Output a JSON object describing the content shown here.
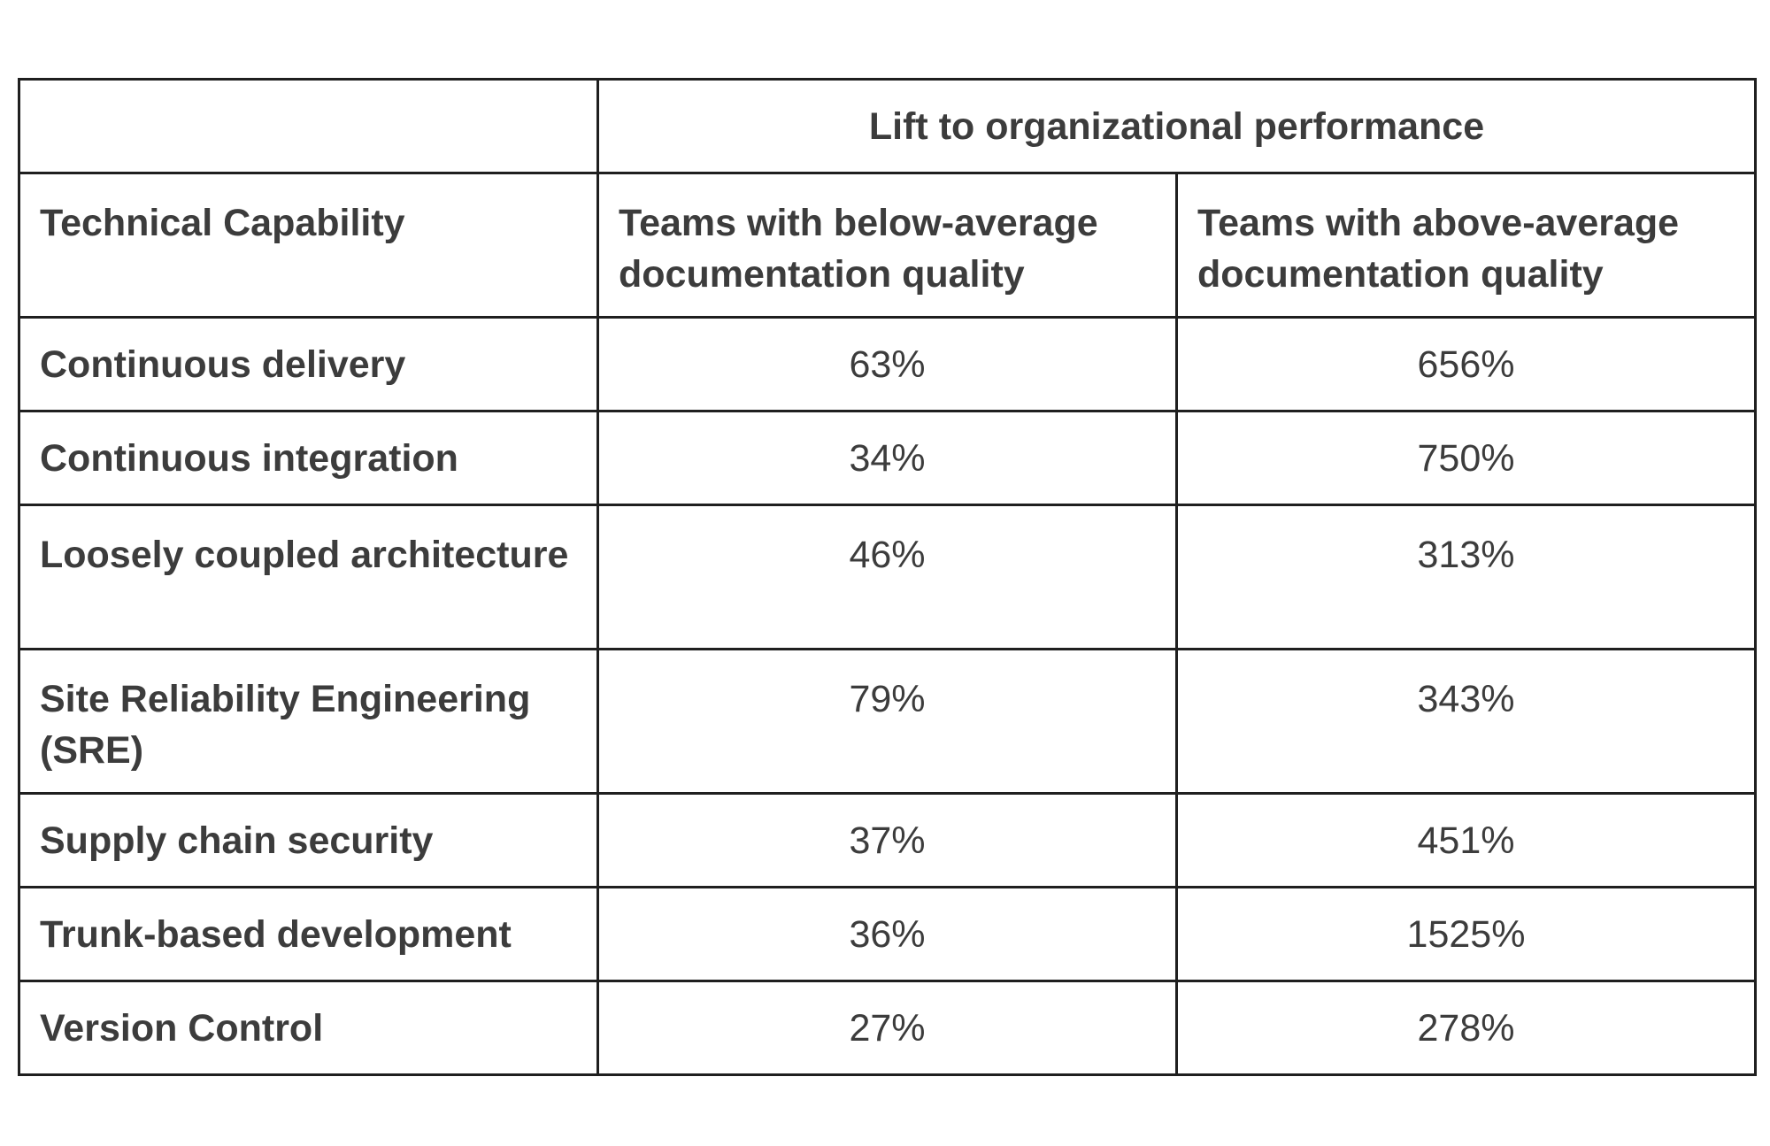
{
  "table": {
    "group_header": "Lift to organizational performance",
    "columns": [
      "Technical Capability",
      "Teams with below-average documentation quality",
      "Teams with above-average documentation quality"
    ],
    "rows": [
      {
        "capability": "Continuous delivery",
        "below": "63%",
        "above": "656%"
      },
      {
        "capability": "Continuous integration",
        "below": "34%",
        "above": "750%"
      },
      {
        "capability": "Loosely coupled architecture",
        "below": "46%",
        "above": "313%"
      },
      {
        "capability": "Site Reliability Engineering (SRE)",
        "below": "79%",
        "above": "343%"
      },
      {
        "capability": "Supply chain security",
        "below": "37%",
        "above": "451%"
      },
      {
        "capability": "Trunk-based development",
        "below": "36%",
        "above": "1525%"
      },
      {
        "capability": "Version Control",
        "below": "27%",
        "above": "278%"
      }
    ]
  },
  "colors": {
    "text": "#3c3c3c",
    "border": "#1f1f1f",
    "background": "#ffffff"
  }
}
